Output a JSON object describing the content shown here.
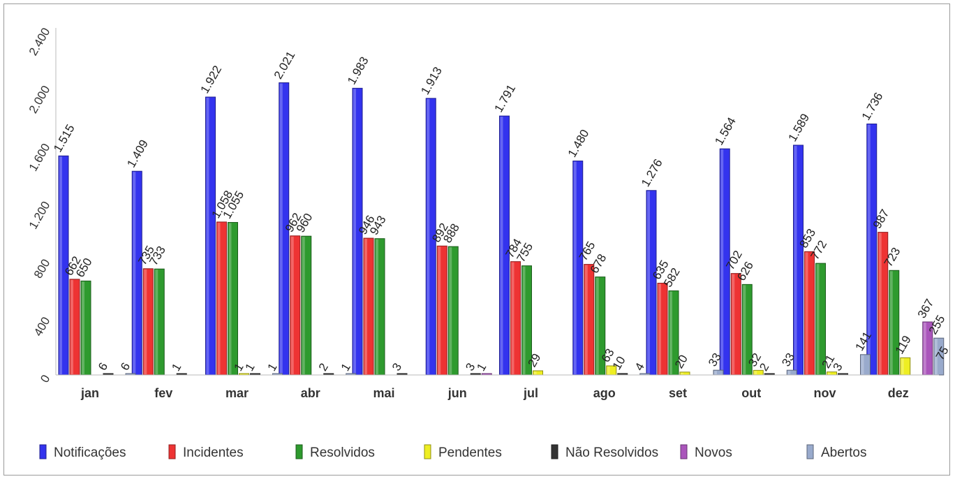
{
  "chart_data": {
    "type": "bar",
    "title": "",
    "xlabel": "",
    "ylabel": "",
    "ylim": [
      0,
      2400
    ],
    "yticks": [
      0,
      400,
      800,
      1200,
      1600,
      2000,
      2400
    ],
    "ytick_labels": [
      "0",
      "400",
      "800",
      "1.200",
      "1.600",
      "2.000",
      "2.400"
    ],
    "grid": false,
    "legend_position": "bottom",
    "categories": [
      "jan",
      "fev",
      "mar",
      "abr",
      "mai",
      "jun",
      "jul",
      "ago",
      "set",
      "out",
      "nov",
      "dez"
    ],
    "series": [
      {
        "name": "Notificações",
        "color": "#3333ee",
        "values": [
          1515,
          1409,
          1922,
          2021,
          1983,
          1913,
          1791,
          1480,
          1276,
          1564,
          1589,
          1736
        ],
        "labels": [
          "1.515",
          "1.409",
          "1.922",
          "2.021",
          "1.983",
          "1.913",
          "1.791",
          "1.480",
          "1.276",
          "1.564",
          "1.589",
          "1.736"
        ]
      },
      {
        "name": "Incidentes",
        "color": "#ee3333",
        "values": [
          662,
          735,
          1058,
          962,
          946,
          892,
          784,
          765,
          635,
          702,
          853,
          987
        ],
        "labels": [
          "662",
          "735",
          "1.058",
          "962",
          "946",
          "892",
          "784",
          "765",
          "635",
          "702",
          "853",
          "987"
        ]
      },
      {
        "name": "Resolvidos",
        "color": "#2e9a2e",
        "values": [
          650,
          733,
          1055,
          960,
          943,
          888,
          755,
          678,
          582,
          626,
          772,
          723
        ],
        "labels": [
          "650",
          "733",
          "1.055",
          "960",
          "943",
          "888",
          "755",
          "678",
          "582",
          "626",
          "772",
          "723"
        ]
      },
      {
        "name": "Pendentes",
        "color": "#eeee22",
        "values": [
          0,
          0,
          1,
          0,
          0,
          0,
          29,
          63,
          20,
          32,
          21,
          119
        ],
        "labels": [
          "",
          "",
          "1",
          "",
          "",
          "",
          "29",
          "63",
          "20",
          "32",
          "21",
          "119"
        ]
      },
      {
        "name": "Não Resolvidos",
        "color": "#333333",
        "values": [
          6,
          1,
          1,
          2,
          3,
          3,
          0,
          10,
          0,
          2,
          3,
          0
        ],
        "labels": [
          "6",
          "1",
          "1",
          "2",
          "3",
          "3",
          "",
          "10",
          "",
          "2",
          "3",
          ""
        ]
      },
      {
        "name": "Novos",
        "color": "#aa55bb",
        "values": [
          0,
          0,
          0,
          0,
          0,
          1,
          0,
          0,
          0,
          0,
          0,
          367
        ],
        "labels": [
          "",
          "",
          "",
          "",
          "",
          "1",
          "",
          "",
          "",
          "",
          "",
          "367"
        ]
      },
      {
        "name": "Abertos",
        "color": "#99aacc",
        "values": [
          6,
          0,
          1,
          1,
          0,
          0,
          0,
          4,
          33,
          33,
          141,
          255
        ],
        "labels": [
          "6",
          "",
          "1",
          "1",
          "",
          "",
          "",
          "4",
          "33",
          "33",
          "141",
          "255"
        ]
      }
    ],
    "extra_labels": [
      {
        "category": "dez",
        "text": "75"
      }
    ]
  }
}
